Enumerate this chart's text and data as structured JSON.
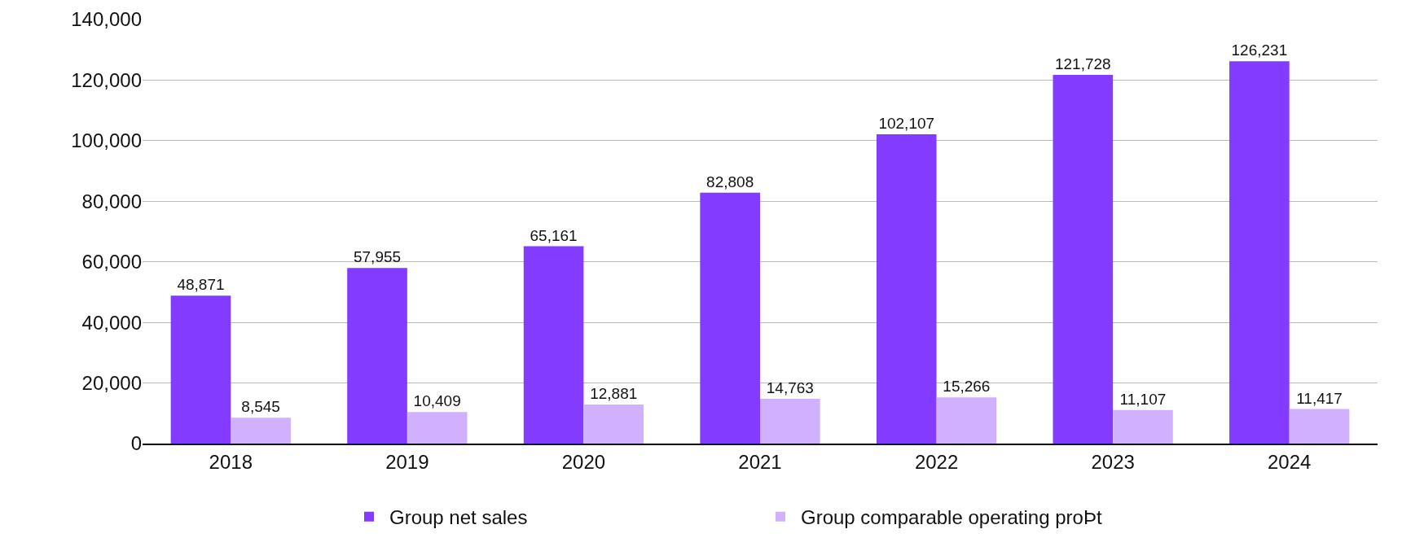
{
  "chart_data": {
    "type": "bar",
    "categories": [
      "2018",
      "2019",
      "2020",
      "2021",
      "2022",
      "2023",
      "2024"
    ],
    "series": [
      {
        "name": "Group net sales",
        "color": "#833cff",
        "values": [
          48871,
          57955,
          65161,
          82808,
          102107,
          121728,
          126231
        ],
        "value_labels": [
          "48,871",
          "57,955",
          "65,161",
          "82,808",
          "102,107",
          "121,728",
          "126,231"
        ]
      },
      {
        "name": "Group comparable operating proÞt",
        "color": "#d1b0ff",
        "values": [
          8545,
          10409,
          12881,
          14763,
          15266,
          11107,
          11417
        ],
        "value_labels": [
          "8,545",
          "10,409",
          "12,881",
          "14,763",
          "15,266",
          "11,107",
          "11,417"
        ]
      }
    ],
    "ylim": [
      0,
      140000
    ],
    "yticks": [
      {
        "value": 0,
        "label": "0"
      },
      {
        "value": 20000,
        "label": "20,000"
      },
      {
        "value": 40000,
        "label": "40,000"
      },
      {
        "value": 60000,
        "label": "60,000"
      },
      {
        "value": 80000,
        "label": "80,000"
      },
      {
        "value": 100000,
        "label": "100,000"
      },
      {
        "value": 120000,
        "label": "120,000"
      },
      {
        "value": 140000,
        "label": "140,000"
      }
    ],
    "grid": "y",
    "legend": "bottom"
  }
}
